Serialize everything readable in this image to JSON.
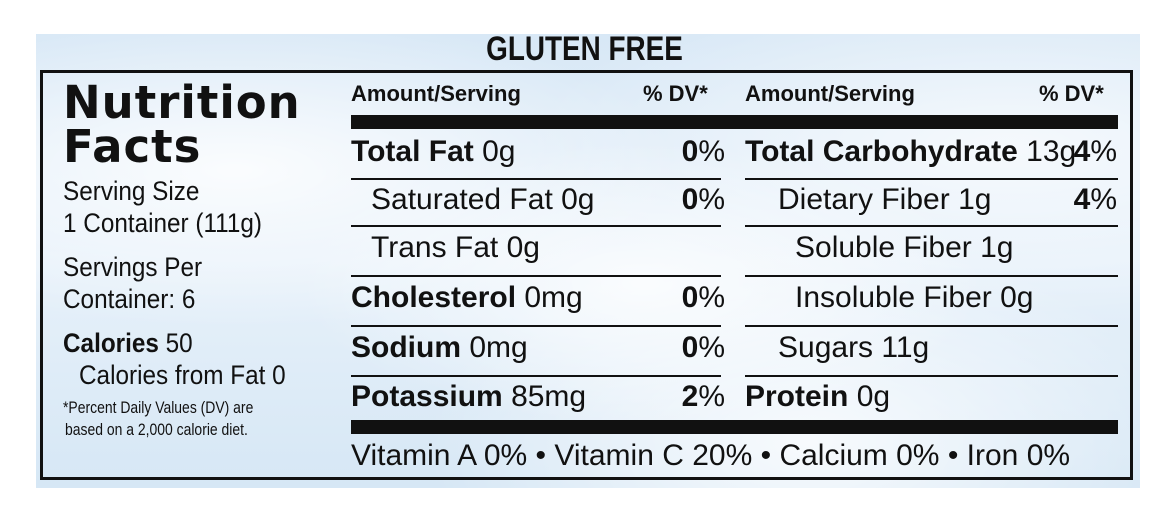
{
  "header": {
    "title": "GLUTEN FREE"
  },
  "left": {
    "title_line1": "Nutrition",
    "title_line2": "Facts",
    "serving_size_label": "Serving Size",
    "serving_size_value": "1 Container (111g)",
    "servings_per_label": "Servings Per",
    "servings_per_value": "Container: 6",
    "calories_label": "Calories",
    "calories_value": "50",
    "calories_from_fat": "Calories from Fat 0",
    "footnote_line1": "*Percent Daily Values (DV) are",
    "footnote_line2": "based on a 2,000 calorie diet."
  },
  "columns": {
    "amount_header": "Amount/Serving",
    "dv_header": "% DV*"
  },
  "left_nutrients": [
    {
      "label": "Total Fat",
      "amount": "0g",
      "dv": "0",
      "bold": true
    },
    {
      "label": "Saturated Fat",
      "amount": "0g",
      "dv": "0",
      "bold": false
    },
    {
      "label": "Trans Fat",
      "amount": "0g",
      "dv": "",
      "bold": false
    },
    {
      "label": "Cholesterol",
      "amount": "0mg",
      "dv": "0",
      "bold": true
    },
    {
      "label": "Sodium",
      "amount": "0mg",
      "dv": "0",
      "bold": true
    },
    {
      "label": "Potassium",
      "amount": "85mg",
      "dv": "2",
      "bold": true
    }
  ],
  "right_nutrients": [
    {
      "label": "Total Carbohydrate",
      "amount": "13g",
      "dv": "4",
      "bold": true
    },
    {
      "label": "Dietary Fiber",
      "amount": "1g",
      "dv": "4",
      "bold": false
    },
    {
      "label": "Soluble Fiber",
      "amount": "1g",
      "dv": "",
      "bold": false
    },
    {
      "label": "Insoluble Fiber",
      "amount": "0g",
      "dv": "",
      "bold": false
    },
    {
      "label": "Sugars",
      "amount": "11g",
      "dv": "",
      "bold": false
    },
    {
      "label": "Protein",
      "amount": "0g",
      "dv": "",
      "bold": true
    }
  ],
  "percent_sign": "%",
  "vitamins": "Vitamin A 0% • Vitamin C 20% • Calcium 0% • Iron 0%"
}
